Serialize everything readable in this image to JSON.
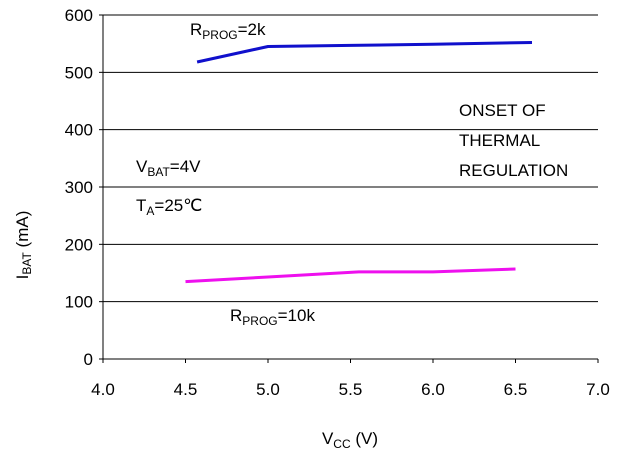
{
  "chart_data": {
    "type": "line",
    "xlabel": {
      "main": "V",
      "sub": "CC",
      "tail": " (V)"
    },
    "ylabel": {
      "main": "I",
      "sub": "BAT",
      "tail": " (mA)"
    },
    "xlim": [
      4.0,
      7.0
    ],
    "ylim": [
      0,
      600
    ],
    "x_ticks": [
      "4.0",
      "4.5",
      "5.0",
      "5.5",
      "6.0",
      "6.5",
      "7.0"
    ],
    "y_ticks": [
      "0",
      "100",
      "200",
      "300",
      "400",
      "500",
      "600"
    ],
    "grid": "horizontal",
    "series": [
      {
        "name": "RPROG=2k",
        "color": "#1010cc",
        "x": [
          4.57,
          5.0,
          5.5,
          6.0,
          6.6
        ],
        "y": [
          518,
          545,
          547,
          549,
          552
        ]
      },
      {
        "name": "RPROG=10k",
        "color": "#ee10ee",
        "x": [
          4.5,
          5.0,
          5.55,
          6.0,
          6.5
        ],
        "y": [
          135,
          143,
          152,
          152,
          157
        ]
      }
    ],
    "annotations": {
      "rprog_2k": {
        "main": "R",
        "sub": "PROG",
        "tail": "=2k"
      },
      "rprog_10k": {
        "main": "R",
        "sub": "PROG",
        "tail": "=10k"
      },
      "vbat": {
        "main": "V",
        "sub": "BAT",
        "tail": "=4V"
      },
      "ta": {
        "main": "T",
        "sub": "A",
        "tail": "=25℃"
      },
      "onset_lines": [
        "ONSET OF",
        "THERMAL",
        "REGULATION"
      ]
    }
  }
}
